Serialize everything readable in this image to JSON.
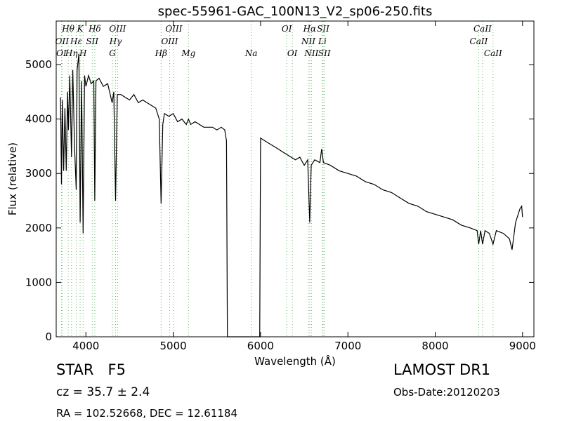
{
  "chart_data": {
    "type": "line",
    "title": "spec-55961-GAC_100N13_V2_sp06-250.fits",
    "x_label": "Wavelength (Å)",
    "y_label": "Flux (relative)",
    "xlim": [
      3660,
      9130
    ],
    "ylim": [
      0,
      5800
    ],
    "xticks": [
      4000,
      5000,
      6000,
      7000,
      8000,
      9000
    ],
    "yticks": [
      0,
      1000,
      2000,
      3000,
      4000,
      5000
    ],
    "color": "#000000",
    "line_color": "#66bb66",
    "x": [
      3710,
      3720,
      3730,
      3745,
      3760,
      3775,
      3790,
      3800,
      3815,
      3835,
      3850,
      3870,
      3889,
      3900,
      3920,
      3934,
      3950,
      3968,
      3985,
      4000,
      4030,
      4060,
      4090,
      4102,
      4115,
      4150,
      4200,
      4250,
      4300,
      4320,
      4340,
      4360,
      4400,
      4450,
      4500,
      4550,
      4600,
      4650,
      4700,
      4750,
      4800,
      4840,
      4861,
      4880,
      4900,
      4950,
      5000,
      5050,
      5100,
      5150,
      5175,
      5200,
      5250,
      5300,
      5350,
      5400,
      5450,
      5500,
      5550,
      5590,
      5610,
      5620,
      5990,
      6000,
      6050,
      6100,
      6150,
      6200,
      6250,
      6300,
      6350,
      6400,
      6450,
      6500,
      6540,
      6563,
      6580,
      6620,
      6680,
      6700,
      6720,
      6800,
      6900,
      7000,
      7100,
      7200,
      7300,
      7400,
      7500,
      7600,
      7700,
      7800,
      7900,
      8000,
      8100,
      8200,
      8300,
      8400,
      8480,
      8498,
      8520,
      8542,
      8570,
      8620,
      8662,
      8700,
      8780,
      8850,
      8880,
      8920,
      8970,
      8990,
      9000
    ],
    "values": [
      4400,
      2800,
      4350,
      3050,
      4200,
      3050,
      4500,
      3800,
      4800,
      3300,
      4900,
      3500,
      2700,
      4900,
      5200,
      2100,
      4700,
      1900,
      4800,
      4600,
      4800,
      4650,
      4700,
      2500,
      4700,
      4750,
      4600,
      4650,
      4300,
      4500,
      2500,
      4450,
      4450,
      4400,
      4350,
      4450,
      4300,
      4350,
      4300,
      4250,
      4200,
      4000,
      2450,
      3900,
      4100,
      4050,
      4100,
      3950,
      4000,
      3900,
      4000,
      3900,
      3950,
      3900,
      3850,
      3850,
      3850,
      3800,
      3850,
      3800,
      3600,
      0,
      0,
      3650,
      3600,
      3550,
      3500,
      3450,
      3400,
      3350,
      3300,
      3250,
      3300,
      3150,
      3250,
      2100,
      3150,
      3250,
      3200,
      3450,
      3200,
      3150,
      3050,
      3000,
      2950,
      2850,
      2800,
      2700,
      2650,
      2550,
      2450,
      2400,
      2300,
      2250,
      2200,
      2150,
      2050,
      2000,
      1950,
      1700,
      1950,
      1700,
      1950,
      1900,
      1700,
      1950,
      1900,
      1800,
      1600,
      2100,
      2350,
      2400,
      2200
    ],
    "spectral_lines": [
      [
        {
          "label": "Hθ",
          "x": 3798
        },
        {
          "label": "K",
          "x": 3934
        },
        {
          "label": "Hδ",
          "x": 4102
        },
        {
          "label": "OIII",
          "x": 4363
        },
        {
          "label": "OIII",
          "x": 5007
        },
        {
          "label": "OI",
          "x": 6300
        },
        {
          "label": "Hα",
          "x": 6563
        },
        {
          "label": "SII",
          "x": 6717
        },
        {
          "label": "CaII",
          "x": 8542
        }
      ],
      [
        {
          "label": "OII",
          "x": 3727
        },
        {
          "label": "Hε",
          "x": 3889
        },
        {
          "label": "SII",
          "x": 4072
        },
        {
          "label": "Hγ",
          "x": 4340
        },
        {
          "label": "OIII",
          "x": 4959
        },
        {
          "label": "NII",
          "x": 6548
        },
        {
          "label": "Li",
          "x": 6708
        },
        {
          "label": "CaII",
          "x": 8498
        }
      ],
      [
        {
          "label": "OI",
          "x": 3720
        },
        {
          "label": "Hη",
          "x": 3835
        },
        {
          "label": "H",
          "x": 3968
        },
        {
          "label": "G",
          "x": 4304
        },
        {
          "label": "Hβ",
          "x": 4861
        },
        {
          "label": "Mg",
          "x": 5175
        },
        {
          "label": "Na",
          "x": 5893
        },
        {
          "label": "OI",
          "x": 6364
        },
        {
          "label": "NII",
          "x": 6583
        },
        {
          "label": "SII",
          "x": 6731
        },
        {
          "label": "CaII",
          "x": 8662
        }
      ]
    ],
    "annotations": [
      "STAR   F5",
      "cz = 35.7 ± 2.4",
      "RA = 102.52668, DEC = 12.61184",
      "LAMOST DR1",
      "Obs-Date:20120203"
    ]
  }
}
